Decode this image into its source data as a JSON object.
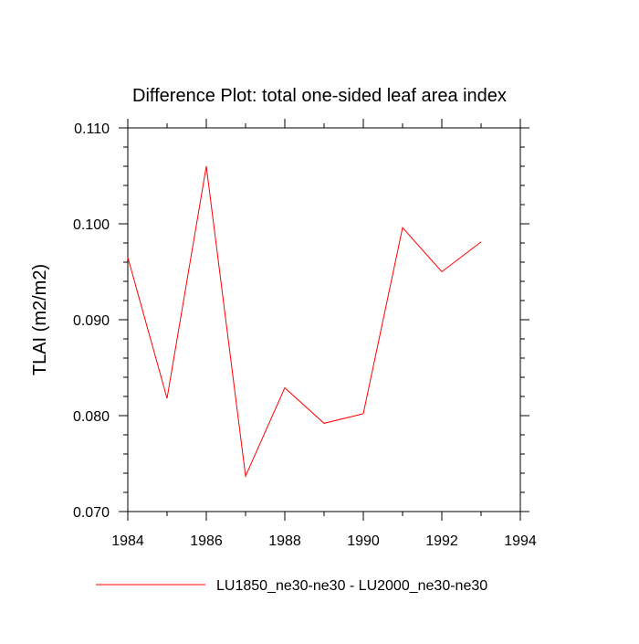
{
  "chart_data": {
    "type": "line",
    "title": "Difference Plot: total one-sided leaf area index",
    "xlabel": "",
    "ylabel": "TLAI  (m2/m2)",
    "xlim": [
      1984,
      1994
    ],
    "ylim": [
      0.07,
      0.11
    ],
    "x_ticks": [
      "1984",
      "1986",
      "1988",
      "1990",
      "1992",
      "1994"
    ],
    "y_ticks": [
      "0.070",
      "0.080",
      "0.090",
      "0.100",
      "0.110"
    ],
    "grid": false,
    "legend_position": "bottom",
    "series": [
      {
        "name": "LU1850_ne30-ne30 - LU2000_ne30-ne30",
        "color": "#ff0000",
        "x": [
          1984,
          1985,
          1986,
          1987,
          1988,
          1989,
          1990,
          1991,
          1992,
          1993
        ],
        "values": [
          0.0965,
          0.0818,
          0.106,
          0.0737,
          0.0829,
          0.0792,
          0.0802,
          0.0996,
          0.095,
          0.0981
        ]
      }
    ]
  }
}
